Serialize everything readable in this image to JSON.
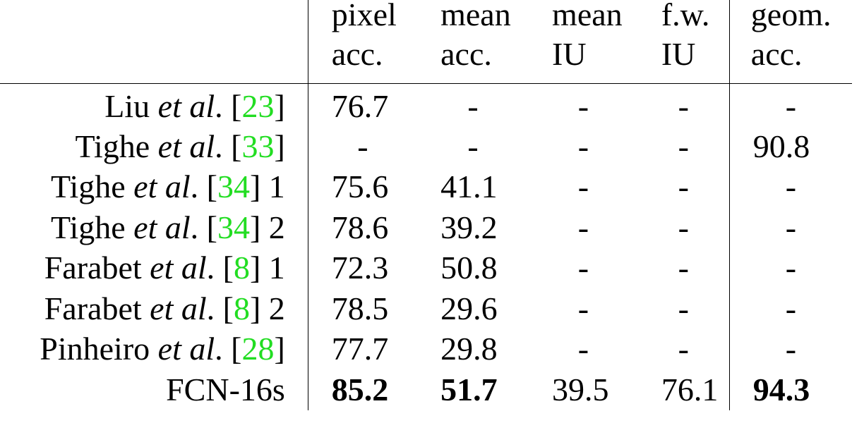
{
  "columns": [
    {
      "line1": "pixel",
      "line2": "acc."
    },
    {
      "line1": "mean",
      "line2": "acc."
    },
    {
      "line1": "mean",
      "line2": "IU"
    },
    {
      "line1": "f.w.",
      "line2": "IU"
    },
    {
      "line1": "geom.",
      "line2": "acc."
    }
  ],
  "rows": [
    {
      "name": "Liu",
      "etal": "et al",
      "pre": ". [",
      "ref": "23",
      "post": "]",
      "suffix": "",
      "values": [
        "76.7",
        "-",
        "-",
        "-",
        "-"
      ]
    },
    {
      "name": "Tighe",
      "etal": "et al",
      "pre": ". [",
      "ref": "33",
      "post": "]",
      "suffix": "",
      "values": [
        "-",
        "-",
        "-",
        "-",
        "90.8"
      ]
    },
    {
      "name": "Tighe",
      "etal": "et al",
      "pre": ". [",
      "ref": "34",
      "post": "]",
      "suffix": " 1",
      "values": [
        "75.6",
        "41.1",
        "-",
        "-",
        "-"
      ]
    },
    {
      "name": "Tighe",
      "etal": "et al",
      "pre": ". [",
      "ref": "34",
      "post": "]",
      "suffix": " 2",
      "values": [
        "78.6",
        "39.2",
        "-",
        "-",
        "-"
      ]
    },
    {
      "name": "Farabet",
      "etal": "et al",
      "pre": ". [",
      "ref": "8",
      "post": "]",
      "suffix": " 1",
      "values": [
        "72.3",
        "50.8",
        "-",
        "-",
        "-"
      ]
    },
    {
      "name": "Farabet",
      "etal": "et al",
      "pre": ". [",
      "ref": "8",
      "post": "]",
      "suffix": " 2",
      "values": [
        "78.5",
        "29.6",
        "-",
        "-",
        "-"
      ]
    },
    {
      "name": "Pinheiro",
      "etal": "et al",
      "pre": ". [",
      "ref": "28",
      "post": "]",
      "suffix": "",
      "values": [
        "77.7",
        "29.8",
        "-",
        "-",
        "-"
      ]
    }
  ],
  "final_row": {
    "name": "FCN-16s",
    "values": [
      "85.2",
      "51.7",
      "39.5",
      "76.1",
      "94.3"
    ],
    "bold": [
      true,
      true,
      false,
      false,
      true
    ]
  },
  "colors": {
    "reference_link": "#22dd22",
    "text": "#000000"
  }
}
